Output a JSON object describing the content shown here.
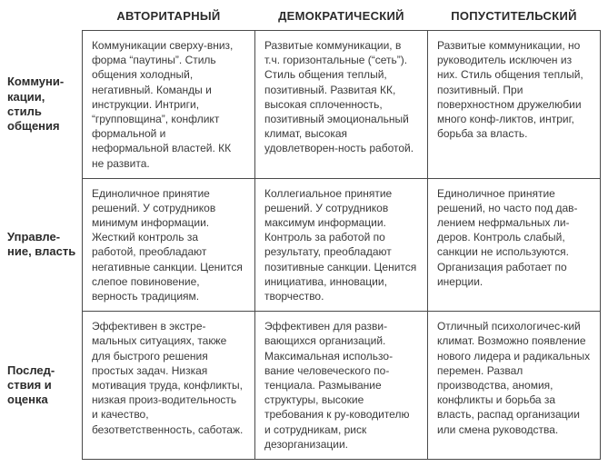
{
  "table": {
    "type": "table",
    "background_color": "#ffffff",
    "border_color": "#4a4a4a",
    "text_color": "#3a3a3a",
    "header_fontsize": 13,
    "cell_fontsize": 12,
    "column_headers": [
      "АВТОРИТАРНЫЙ",
      "ДЕМОКРАТИЧЕСКИЙ",
      "ПОПУСТИТЕЛЬСКИЙ"
    ],
    "row_headers": [
      "Коммуни-кации, стиль общения",
      "Управле-ние, власть",
      "Послед-ствия и оценка"
    ],
    "rows": [
      [
        "Коммуникации сверху-вниз, форма “паутины”. Стиль общения холодный, негативный. Команды и инструкции. Интриги, “групповщина”, конфликт формальной и неформальной властей. КК не развита.",
        "Развитые коммуникации, в т.ч. горизонтальные (“сеть”). Стиль общения теплый, позитивный. Развитая КК, высокая сплоченность, позитивный эмоциональный климат, высокая удовлетворен-ность работой.",
        "Развитые коммуникации, но руководитель исключен из них. Стиль общения теплый, позитивный. При поверхностном дружелюбии много конф-ликтов, интриг, борьба за власть."
      ],
      [
        "Единоличное принятие решений. У сотрудников минимум информации. Жесткий контроль за работой, преобладают негативные санкции. Ценится слепое повиновение, верность традициям.",
        "Коллегиальное принятие решений. У сотрудников максимум информации. Контроль за работой по результату, преобладают позитивные санкции. Ценится инициатива, инновации, творчество.",
        "Единоличное принятие решений, но часто под дав-лением нефрмальных ли-деров. Контроль слабый, санкции не используются. Организация работает по инерции."
      ],
      [
        "Эффективен в экстре-мальных ситуациях, также для быстрого решения простых задач. Низкая мотивация труда, конфликты, низкая произ-водительность и качество, безответственность, саботаж.",
        "Эффективен для разви-вающихся организаций. Максимальная использо-вание человеческого по-тенциала. Размывание структуры, высокие требования к ру-ководителю и сотрудникам, риск дезорганизации.",
        "Отличный психологичес-кий климат. Возможно появление нового лидера и радикальных перемен. Развал производства, аномия, конфликты и борьба за власть, распад организации или смена руководства."
      ]
    ]
  }
}
